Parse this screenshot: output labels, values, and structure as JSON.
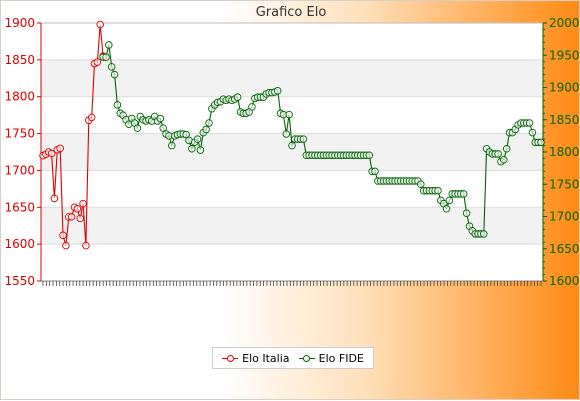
{
  "chart_data": {
    "type": "line",
    "title": "Grafico Elo",
    "xlabel": "",
    "ylabel": "",
    "grid": true,
    "legend_position": "bottom",
    "y_left": {
      "min": 1550,
      "max": 1900,
      "step": 50,
      "ticks": [
        "1550",
        "1600",
        "1650",
        "1700",
        "1750",
        "1800",
        "1850",
        "1900"
      ]
    },
    "y_right": {
      "min": 1600,
      "max": 2000,
      "step": 50,
      "ticks": [
        "1600",
        "1650",
        "1700",
        "1750",
        "1800",
        "1850",
        "1900",
        "1950",
        "2000"
      ]
    },
    "x_tick_count": 150,
    "series": [
      {
        "name": "Elo Italia",
        "axis": "left",
        "color": "#dd0000",
        "points": [
          [
            0,
            1720
          ],
          [
            1,
            1722
          ],
          [
            2,
            1725
          ],
          [
            3,
            1723
          ],
          [
            4,
            1662
          ],
          [
            5,
            1728
          ],
          [
            6,
            1730
          ],
          [
            7,
            1612
          ],
          [
            8,
            1598
          ],
          [
            9,
            1637
          ],
          [
            10,
            1637
          ],
          [
            11,
            1650
          ],
          [
            12,
            1648
          ],
          [
            13,
            1635
          ],
          [
            14,
            1655
          ],
          [
            15,
            1598
          ],
          [
            16,
            1768
          ],
          [
            17,
            1772
          ],
          [
            18,
            1845
          ],
          [
            19,
            1847
          ],
          [
            20,
            1898
          ],
          [
            21,
            1855
          ]
        ]
      },
      {
        "name": "Elo FIDE",
        "axis": "right",
        "color": "#006600",
        "points": [
          [
            21,
            1947
          ],
          [
            22,
            1947
          ],
          [
            23,
            1966
          ],
          [
            24,
            1932
          ],
          [
            25,
            1920
          ],
          [
            26,
            1873
          ],
          [
            27,
            1860
          ],
          [
            28,
            1857
          ],
          [
            29,
            1850
          ],
          [
            30,
            1843
          ],
          [
            31,
            1852
          ],
          [
            32,
            1845
          ],
          [
            33,
            1837
          ],
          [
            34,
            1855
          ],
          [
            35,
            1850
          ],
          [
            36,
            1848
          ],
          [
            37,
            1850
          ],
          [
            38,
            1848
          ],
          [
            39,
            1855
          ],
          [
            40,
            1848
          ],
          [
            41,
            1852
          ],
          [
            42,
            1837
          ],
          [
            43,
            1828
          ],
          [
            44,
            1825
          ],
          [
            45,
            1810
          ],
          [
            46,
            1825
          ],
          [
            47,
            1827
          ],
          [
            48,
            1828
          ],
          [
            49,
            1828
          ],
          [
            50,
            1827
          ],
          [
            51,
            1818
          ],
          [
            52,
            1805
          ],
          [
            53,
            1815
          ],
          [
            54,
            1820
          ],
          [
            55,
            1803
          ],
          [
            56,
            1830
          ],
          [
            57,
            1835
          ],
          [
            58,
            1845
          ],
          [
            59,
            1867
          ],
          [
            60,
            1873
          ],
          [
            61,
            1877
          ],
          [
            62,
            1878
          ],
          [
            63,
            1882
          ],
          [
            64,
            1880
          ],
          [
            65,
            1882
          ],
          [
            66,
            1880
          ],
          [
            67,
            1882
          ],
          [
            68,
            1885
          ],
          [
            69,
            1862
          ],
          [
            70,
            1860
          ],
          [
            71,
            1860
          ],
          [
            72,
            1862
          ],
          [
            73,
            1870
          ],
          [
            74,
            1883
          ],
          [
            75,
            1885
          ],
          [
            76,
            1885
          ],
          [
            77,
            1885
          ],
          [
            78,
            1890
          ],
          [
            79,
            1892
          ],
          [
            80,
            1892
          ],
          [
            81,
            1893
          ],
          [
            82,
            1895
          ],
          [
            83,
            1860
          ],
          [
            84,
            1858
          ],
          [
            85,
            1828
          ],
          [
            86,
            1858
          ],
          [
            87,
            1810
          ],
          [
            88,
            1820
          ],
          [
            89,
            1820
          ],
          [
            90,
            1820
          ],
          [
            91,
            1820
          ],
          [
            92,
            1795
          ],
          [
            93,
            1795
          ],
          [
            94,
            1795
          ],
          [
            95,
            1795
          ],
          [
            96,
            1795
          ],
          [
            97,
            1795
          ],
          [
            98,
            1795
          ],
          [
            99,
            1795
          ],
          [
            100,
            1795
          ],
          [
            101,
            1795
          ],
          [
            102,
            1795
          ],
          [
            103,
            1795
          ],
          [
            104,
            1795
          ],
          [
            105,
            1795
          ],
          [
            106,
            1795
          ],
          [
            107,
            1795
          ],
          [
            108,
            1795
          ],
          [
            109,
            1795
          ],
          [
            110,
            1795
          ],
          [
            111,
            1795
          ],
          [
            112,
            1795
          ],
          [
            113,
            1795
          ],
          [
            114,
            1795
          ],
          [
            115,
            1770
          ],
          [
            116,
            1770
          ],
          [
            117,
            1755
          ],
          [
            118,
            1755
          ],
          [
            119,
            1755
          ],
          [
            120,
            1755
          ],
          [
            121,
            1755
          ],
          [
            122,
            1755
          ],
          [
            123,
            1755
          ],
          [
            124,
            1755
          ],
          [
            125,
            1755
          ],
          [
            126,
            1755
          ],
          [
            127,
            1755
          ],
          [
            128,
            1755
          ],
          [
            129,
            1755
          ],
          [
            130,
            1755
          ],
          [
            131,
            1755
          ],
          [
            132,
            1750
          ],
          [
            133,
            1740
          ],
          [
            134,
            1740
          ],
          [
            135,
            1740
          ],
          [
            136,
            1740
          ],
          [
            137,
            1740
          ],
          [
            138,
            1740
          ],
          [
            139,
            1725
          ],
          [
            140,
            1720
          ],
          [
            141,
            1712
          ],
          [
            142,
            1725
          ],
          [
            143,
            1735
          ],
          [
            144,
            1735
          ],
          [
            145,
            1735
          ],
          [
            146,
            1735
          ],
          [
            147,
            1735
          ],
          [
            148,
            1705
          ],
          [
            149,
            1685
          ],
          [
            150,
            1678
          ],
          [
            151,
            1673
          ],
          [
            152,
            1673
          ],
          [
            153,
            1673
          ],
          [
            154,
            1673
          ],
          [
            155,
            1805
          ],
          [
            156,
            1800
          ],
          [
            157,
            1797
          ],
          [
            158,
            1797
          ],
          [
            159,
            1797
          ],
          [
            160,
            1785
          ],
          [
            161,
            1788
          ],
          [
            162,
            1805
          ],
          [
            163,
            1830
          ],
          [
            164,
            1830
          ],
          [
            165,
            1835
          ],
          [
            166,
            1842
          ],
          [
            167,
            1845
          ],
          [
            168,
            1845
          ],
          [
            169,
            1845
          ],
          [
            170,
            1845
          ],
          [
            171,
            1830
          ],
          [
            172,
            1815
          ],
          [
            173,
            1815
          ],
          [
            174,
            1815
          ]
        ]
      }
    ]
  }
}
